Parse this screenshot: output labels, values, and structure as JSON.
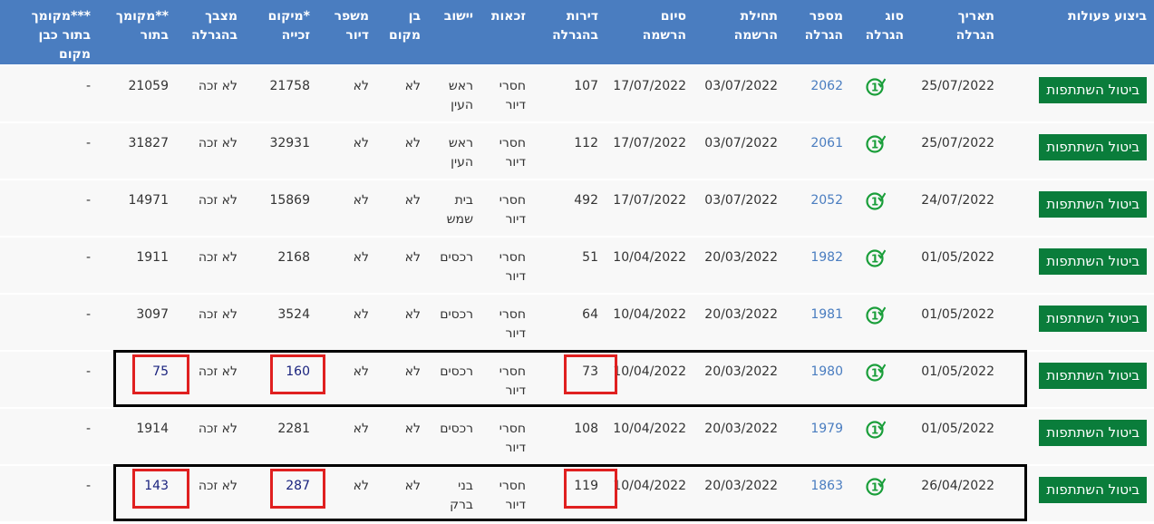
{
  "headers": [
    "ביצוע פעולות",
    "תאריך הגרלה",
    "סוג הגרלה",
    "מספר הגרלה",
    "תחילת הרשמה",
    "סיום הרשמה",
    "דירות בהגרלה",
    "זכאות",
    "יישוב",
    "בן מקום",
    "משפר דיור",
    "*מיקום זכייה",
    "מצבך בהגרלה",
    "**מקומך בתור",
    "***מקומך בתור כבן מקום"
  ],
  "action_label": "ביטול השתתפות",
  "lottery_type_icon": "check-circle-1-icon",
  "colors": {
    "header": "#4a7dc0",
    "button": "#0a7d3b",
    "icon": "#1a9e3a",
    "highlight_row": "#000000",
    "highlight_cell": "#e02020"
  },
  "rows": [
    {
      "date": "25/07/2022",
      "number": "2062",
      "start": "03/07/2022",
      "end": "17/07/2022",
      "apartments": "107",
      "eligibility": "חסרי דיור",
      "city": "ראש העין",
      "local": "לא",
      "upgrader": "לא",
      "win_position": "21758",
      "status": "לא זכה",
      "queue": "21059",
      "queue_local": "-",
      "highlighted": false
    },
    {
      "date": "25/07/2022",
      "number": "2061",
      "start": "03/07/2022",
      "end": "17/07/2022",
      "apartments": "112",
      "eligibility": "חסרי דיור",
      "city": "ראש העין",
      "local": "לא",
      "upgrader": "לא",
      "win_position": "32931",
      "status": "לא זכה",
      "queue": "31827",
      "queue_local": "-",
      "highlighted": false
    },
    {
      "date": "24/07/2022",
      "number": "2052",
      "start": "03/07/2022",
      "end": "17/07/2022",
      "apartments": "492",
      "eligibility": "חסרי דיור",
      "city": "בית שמש",
      "local": "לא",
      "upgrader": "לא",
      "win_position": "15869",
      "status": "לא זכה",
      "queue": "14971",
      "queue_local": "-",
      "highlighted": false
    },
    {
      "date": "01/05/2022",
      "number": "1982",
      "start": "20/03/2022",
      "end": "10/04/2022",
      "apartments": "51",
      "eligibility": "חסרי דיור",
      "city": "רכסים",
      "local": "לא",
      "upgrader": "לא",
      "win_position": "2168",
      "status": "לא זכה",
      "queue": "1911",
      "queue_local": "-",
      "highlighted": false
    },
    {
      "date": "01/05/2022",
      "number": "1981",
      "start": "20/03/2022",
      "end": "10/04/2022",
      "apartments": "64",
      "eligibility": "חסרי דיור",
      "city": "רכסים",
      "local": "לא",
      "upgrader": "לא",
      "win_position": "3524",
      "status": "לא זכה",
      "queue": "3097",
      "queue_local": "-",
      "highlighted": false
    },
    {
      "date": "01/05/2022",
      "number": "1980",
      "start": "20/03/2022",
      "end": "10/04/2022",
      "apartments": "73",
      "eligibility": "חסרי דיור",
      "city": "רכסים",
      "local": "לא",
      "upgrader": "לא",
      "win_position": "160",
      "status": "לא זכה",
      "queue": "75",
      "queue_local": "-",
      "highlighted": true
    },
    {
      "date": "01/05/2022",
      "number": "1979",
      "start": "20/03/2022",
      "end": "10/04/2022",
      "apartments": "108",
      "eligibility": "חסרי דיור",
      "city": "רכסים",
      "local": "לא",
      "upgrader": "לא",
      "win_position": "2281",
      "status": "לא זכה",
      "queue": "1914",
      "queue_local": "-",
      "highlighted": false
    },
    {
      "date": "26/04/2022",
      "number": "1863",
      "start": "20/03/2022",
      "end": "10/04/2022",
      "apartments": "119",
      "eligibility": "חסרי דיור",
      "city": "בני ברק",
      "local": "לא",
      "upgrader": "לא",
      "win_position": "287",
      "status": "לא זכה",
      "queue": "143",
      "queue_local": "-",
      "highlighted": true
    }
  ]
}
